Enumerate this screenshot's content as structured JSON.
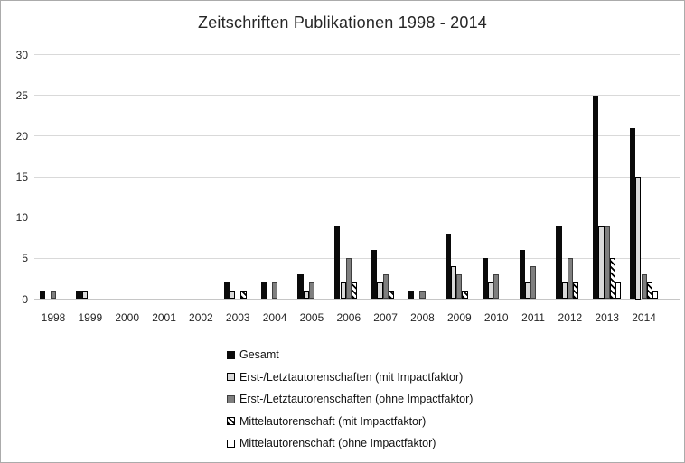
{
  "chart_data": {
    "type": "bar",
    "title": "Zeitschriften Publikationen 1998 - 2014",
    "categories": [
      "1998",
      "1999",
      "2000",
      "2001",
      "2002",
      "2003",
      "2004",
      "2005",
      "2006",
      "2007",
      "2008",
      "2009",
      "2010",
      "2011",
      "2012",
      "2013",
      "2014"
    ],
    "series": [
      {
        "key": "gesamt",
        "name": "Gesamt",
        "style": "solid-black",
        "values": [
          1,
          1,
          0,
          0,
          0,
          2,
          2,
          3,
          9,
          6,
          1,
          8,
          5,
          6,
          9,
          25,
          21
        ]
      },
      {
        "key": "erst-letzt-mit-if",
        "name": "Erst-/Letztautorenschaften (mit Impactfaktor)",
        "style": "light-gray-outline",
        "values": [
          0,
          1,
          0,
          0,
          0,
          1,
          0,
          1,
          2,
          2,
          0,
          4,
          2,
          2,
          2,
          9,
          15
        ]
      },
      {
        "key": "erst-letzt-ohne-if",
        "name": "Erst-/Letztautorenschaften (ohne Impactfaktor)",
        "style": "solid-gray",
        "values": [
          1,
          0,
          0,
          0,
          0,
          0,
          2,
          2,
          5,
          3,
          1,
          3,
          3,
          4,
          5,
          9,
          3
        ]
      },
      {
        "key": "mittel-mit-if",
        "name": "Mittelautorenschaft (mit Impactfaktor)",
        "style": "diagonal-hatch",
        "values": [
          0,
          0,
          0,
          0,
          0,
          1,
          0,
          0,
          2,
          1,
          0,
          1,
          0,
          0,
          2,
          5,
          2
        ]
      },
      {
        "key": "mittel-ohne-if",
        "name": "Mittelautorenschaft (ohne Impactfaktor)",
        "style": "white-outline",
        "values": [
          0,
          0,
          0,
          0,
          0,
          0,
          0,
          0,
          0,
          0,
          0,
          0,
          0,
          0,
          0,
          2,
          1
        ]
      }
    ],
    "y_ticks": [
      0,
      5,
      10,
      15,
      20,
      25,
      30
    ],
    "ylim": [
      0,
      30
    ],
    "grid": true,
    "legend_position": "bottom",
    "colors": {
      "black": "#0a0a0a",
      "light_gray": "#d9d9d9",
      "mid_gray": "#7f7f7f",
      "white": "#ffffff",
      "outline": "#000000",
      "gridline": "#d9d9d9"
    }
  }
}
